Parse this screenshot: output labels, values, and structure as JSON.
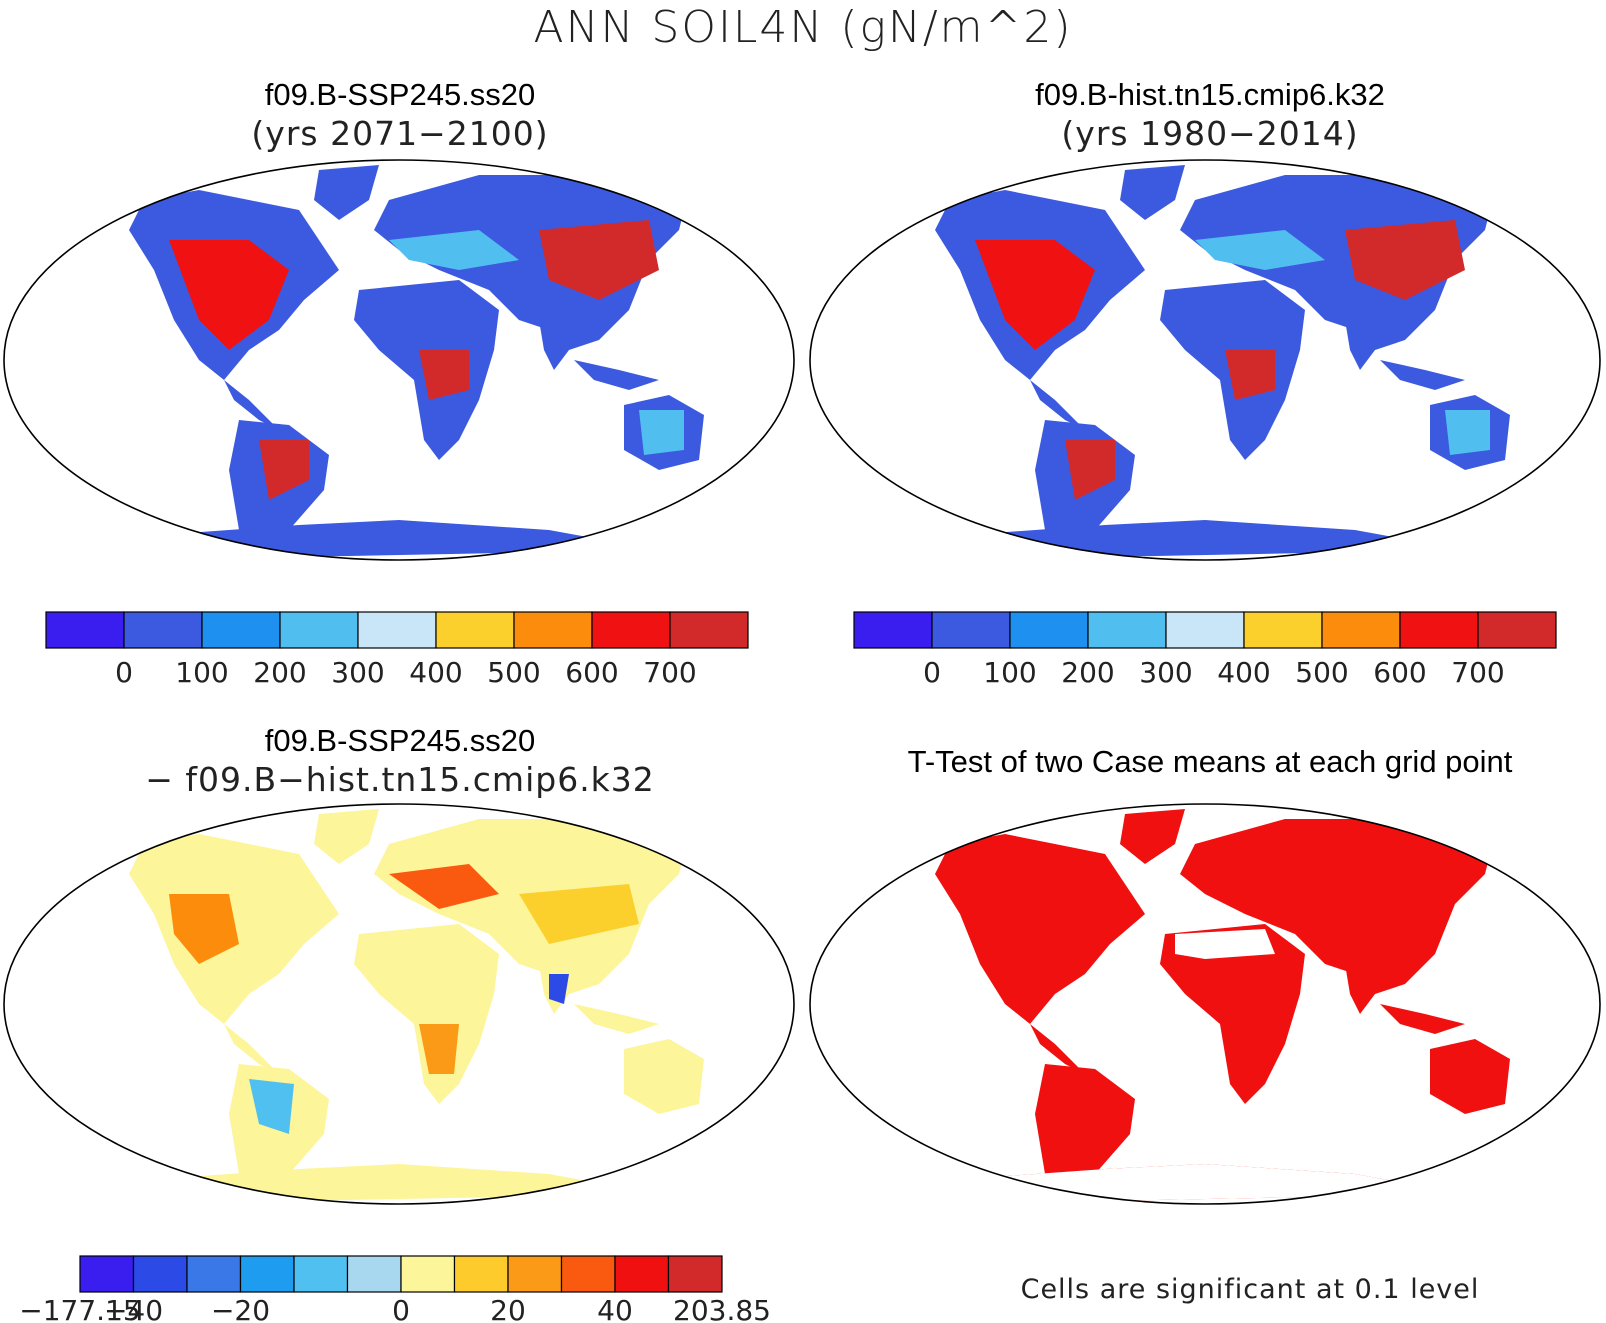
{
  "title": "ANN SOIL4N (gN/m^2)",
  "panels": [
    {
      "id": "future",
      "case": "f09.B-SSP245.ss20",
      "period": "(yrs 2071−2100)"
    },
    {
      "id": "hist",
      "case": "f09.B-hist.tn15.cmip6.k32",
      "period": "(yrs 1980−2014)"
    },
    {
      "id": "diff",
      "case": "f09.B-SSP245.ss20",
      "period": "− f09.B−hist.tn15.cmip6.k32"
    },
    {
      "id": "ttest",
      "case": "T-Test of two Case means at each grid point",
      "period": ""
    }
  ],
  "colorbars": {
    "absolute": {
      "colors": [
        "#3a1ef0",
        "#3c5adf",
        "#1e90f0",
        "#50bff0",
        "#c8e6f7",
        "#fbd02c",
        "#fb8c0c",
        "#f01212",
        "#d22a2a"
      ],
      "labels": [
        "0",
        "100",
        "200",
        "300",
        "400",
        "500",
        "600",
        "700"
      ]
    },
    "difference": {
      "colors": [
        "#3a1ef0",
        "#2c4ae6",
        "#3a78e8",
        "#1e9cf0",
        "#50c0f0",
        "#a8d8f0",
        "#fdf59a",
        "#fdcc2c",
        "#fb9a16",
        "#fa5a10",
        "#f01010",
        "#d22a2a"
      ],
      "labels": [
        "−177.15",
        "−40",
        "−20",
        "0",
        "20",
        "40",
        "203.85"
      ],
      "label_positions": [
        0,
        1,
        3,
        6,
        8,
        10,
        12
      ]
    }
  },
  "ttest_note": "Cells are significant at 0.1 level",
  "map_fill": {
    "future": "#d22a2a",
    "hist": "#d22a2a",
    "diff": "#fdf59a",
    "ttest": "#f01010",
    "ocean": "#ffffff",
    "antarctica_future": "#3c5adf",
    "antarctica_diff": "#fdf59a"
  }
}
